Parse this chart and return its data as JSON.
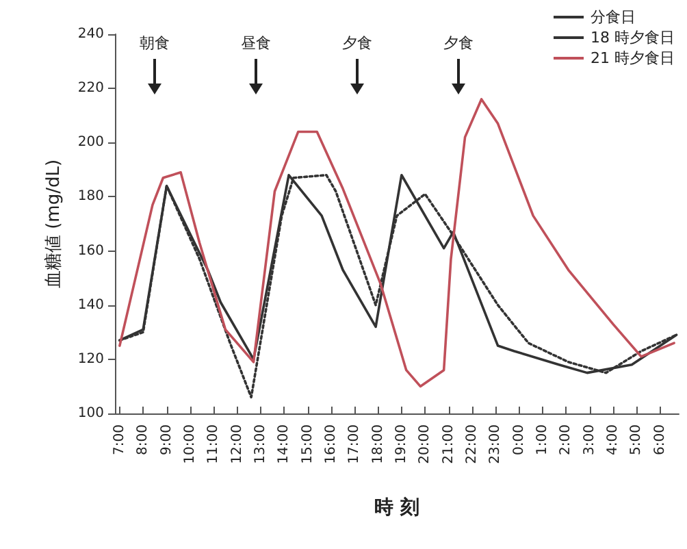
{
  "chart_data": {
    "type": "line",
    "xlabel": "時 刻",
    "ylabel": "血糖値 (mg/dL)",
    "xlim": [
      "2000-01-01T06:48",
      "2000-01-02T06:48"
    ],
    "ylim": [
      100,
      240
    ],
    "yticks": [
      100,
      120,
      140,
      160,
      180,
      200,
      220,
      240
    ],
    "xticks": [
      {
        "value": "2000-01-01T07:00",
        "label": "7:00"
      },
      {
        "value": "2000-01-01T08:00",
        "label": "8:00"
      },
      {
        "value": "2000-01-01T09:00",
        "label": "9:00"
      },
      {
        "value": "2000-01-01T10:00",
        "label": "10:00"
      },
      {
        "value": "2000-01-01T11:00",
        "label": "11:00"
      },
      {
        "value": "2000-01-01T12:00",
        "label": "12:00"
      },
      {
        "value": "2000-01-01T13:00",
        "label": "13:00"
      },
      {
        "value": "2000-01-01T14:00",
        "label": "14:00"
      },
      {
        "value": "2000-01-01T15:00",
        "label": "15:00"
      },
      {
        "value": "2000-01-01T16:00",
        "label": "16:00"
      },
      {
        "value": "2000-01-01T17:00",
        "label": "17:00"
      },
      {
        "value": "2000-01-01T18:00",
        "label": "18:00"
      },
      {
        "value": "2000-01-01T19:00",
        "label": "19:00"
      },
      {
        "value": "2000-01-01T20:00",
        "label": "20:00"
      },
      {
        "value": "2000-01-01T21:00",
        "label": "21:00"
      },
      {
        "value": "2000-01-01T22:00",
        "label": "22:00"
      },
      {
        "value": "2000-01-01T23:00",
        "label": "23:00"
      },
      {
        "value": "2000-01-02T00:00",
        "label": "0:00"
      },
      {
        "value": "2000-01-02T01:00",
        "label": "1:00"
      },
      {
        "value": "2000-01-02T02:00",
        "label": "2:00"
      },
      {
        "value": "2000-01-02T03:00",
        "label": "3:00"
      },
      {
        "value": "2000-01-02T04:00",
        "label": "4:00"
      },
      {
        "value": "2000-01-02T05:00",
        "label": "5:00"
      },
      {
        "value": "2000-01-02T06:00",
        "label": "6:00"
      }
    ],
    "grid": false,
    "legend": "top right",
    "marker": "none",
    "series": [
      {
        "name": "分食日",
        "color": "#333333",
        "line_style": "solid",
        "x": [
          "2000-01-01T07:00",
          "2000-01-01T08:00",
          "2000-01-01T09:00",
          "2000-01-01T10:45",
          "2000-01-01T11:18",
          "2000-01-01T12:42",
          "2000-01-01T14:12",
          "2000-01-01T15:36",
          "2000-01-01T16:30",
          "2000-01-01T17:54",
          "2000-01-01T19:00",
          "2000-01-01T20:48",
          "2000-01-01T21:12",
          "2000-01-01T23:06",
          "2000-01-01T23:48",
          "2000-01-02T01:42",
          "2000-01-02T02:54",
          "2000-01-02T04:48",
          "2000-01-02T06:42"
        ],
        "values": [
          127,
          131,
          184,
          153,
          141,
          120,
          188,
          173,
          153,
          132,
          188,
          161,
          167,
          125,
          123,
          118,
          115,
          118,
          129
        ]
      },
      {
        "name": "18 時夕食日",
        "color": "#333333",
        "line_style": "dotted",
        "x": [
          "2000-01-01T07:00",
          "2000-01-01T08:00",
          "2000-01-01T09:00",
          "2000-01-01T10:24",
          "2000-01-01T11:42",
          "2000-01-01T12:36",
          "2000-01-01T13:54",
          "2000-01-01T14:24",
          "2000-01-01T15:48",
          "2000-01-01T16:12",
          "2000-01-01T17:54",
          "2000-01-01T18:48",
          "2000-01-01T20:00",
          "2000-01-01T21:06",
          "2000-01-01T23:06",
          "2000-01-02T00:24",
          "2000-01-02T02:06",
          "2000-01-02T03:42",
          "2000-01-02T05:12",
          "2000-01-02T06:42"
        ],
        "values": [
          127,
          130,
          184,
          157,
          126,
          106,
          173,
          187,
          188,
          182,
          140,
          173,
          181,
          167,
          140,
          126,
          119,
          115,
          123,
          129
        ]
      },
      {
        "name": "21 時夕食日",
        "color": "#c0505a",
        "line_style": "solid",
        "x": [
          "2000-01-01T07:00",
          "2000-01-01T08:24",
          "2000-01-01T08:51",
          "2000-01-01T09:36",
          "2000-01-01T10:24",
          "2000-01-01T11:30",
          "2000-01-01T12:42",
          "2000-01-01T13:36",
          "2000-01-01T14:36",
          "2000-01-01T15:24",
          "2000-01-01T16:30",
          "2000-01-01T18:06",
          "2000-01-01T19:12",
          "2000-01-01T19:48",
          "2000-01-01T20:48",
          "2000-01-01T21:06",
          "2000-01-01T21:42",
          "2000-01-01T22:24",
          "2000-01-01T23:06",
          "2000-01-02T00:36",
          "2000-01-02T02:06",
          "2000-01-02T04:00",
          "2000-01-02T05:12",
          "2000-01-02T06:36"
        ],
        "values": [
          125,
          177,
          187,
          189,
          163,
          131,
          119,
          182,
          204,
          204,
          183,
          148,
          116,
          110,
          116,
          157,
          202,
          216,
          207,
          173,
          153,
          133,
          121,
          126
        ]
      }
    ],
    "annotations": [
      "朝食",
      "昼食",
      "夕食",
      "夕食"
    ]
  }
}
